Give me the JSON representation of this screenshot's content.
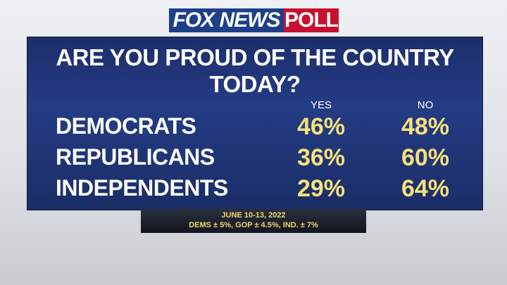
{
  "header": {
    "logo": "FOX NEWS",
    "logo_suffix": "POLL"
  },
  "title": "ARE YOU PROUD OF THE COUNTRY TODAY?",
  "table": {
    "columns": [
      "YES",
      "NO"
    ],
    "rows": [
      [
        "DEMOCRATS",
        "46%",
        "48%"
      ],
      [
        "REPUBLICANS",
        "36%",
        "60%"
      ],
      [
        "INDEPENDENTS",
        "29%",
        "64%"
      ]
    ]
  },
  "footer": {
    "dates": "JUNE 10-13, 2022",
    "margins": "DEMS ± 5%, GOP ± 4.5%, IND. ± 7%"
  }
}
